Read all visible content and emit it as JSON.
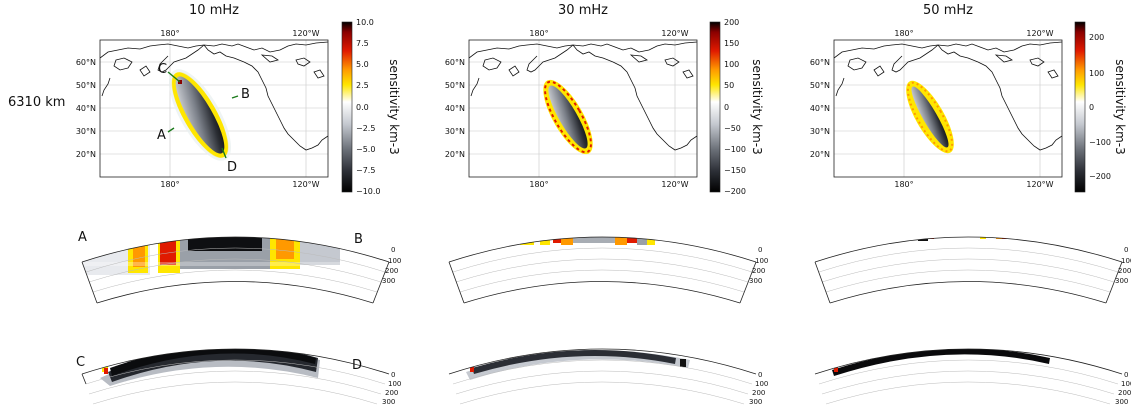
{
  "row_label": "6310 km",
  "columns": [
    {
      "title": "10 mHz",
      "colorbar": {
        "label": "sensitivity km-3",
        "ticks": [
          "10.0",
          "7.5",
          "5.0",
          "2.5",
          "0.0",
          "−2.5",
          "−5.0",
          "−7.5",
          "−10.0"
        ]
      }
    },
    {
      "title": "30 mHz",
      "colorbar": {
        "label": "sensitivity km-3",
        "ticks": [
          "200",
          "150",
          "100",
          "50",
          "0",
          "−50",
          "−100",
          "−150",
          "−200"
        ]
      }
    },
    {
      "title": "50 mHz",
      "colorbar": {
        "label": "sensitivity km-3",
        "ticks": [
          "200",
          "100",
          "0",
          "−100",
          "−200"
        ]
      }
    }
  ],
  "map_axes": {
    "lon_ticks": [
      "180°",
      "120°W"
    ],
    "lat_ticks": [
      "60°N",
      "50°N",
      "40°N",
      "30°N",
      "20°N"
    ]
  },
  "profile_labels": {
    "A": "A",
    "B": "B",
    "C": "C",
    "D": "D"
  },
  "depth_ticks": [
    "0",
    "100",
    "200",
    "300"
  ],
  "chart_data": {
    "type": "heatmap",
    "colormap": {
      "positive": "#c00000",
      "mid": "#ffffff",
      "negative": "#000000",
      "accent": "#ffe600"
    }
  }
}
